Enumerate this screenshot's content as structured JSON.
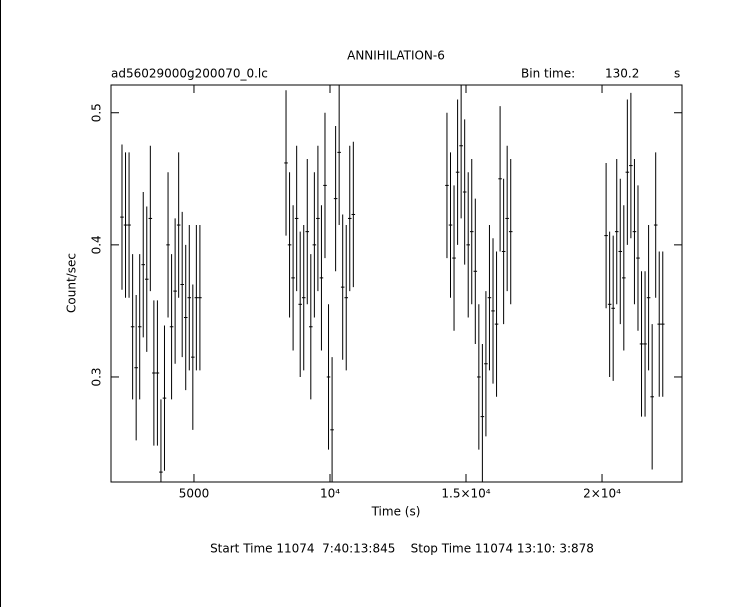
{
  "chart_data": {
    "type": "errorbar",
    "title": "ANNIHILATION-6",
    "file": "ad56029000g200070_0.lc",
    "bin_time_label": "Bin time:",
    "bin_time": "130.2",
    "bin_unit": "s",
    "xlabel": "Time (s)",
    "ylabel": "Count/sec",
    "footer": "Start Time 11074  7:40:13:845    Stop Time 11074 13:10: 3:878",
    "x": [
      2354,
      2484,
      2614,
      2745,
      2875,
      3005,
      3135,
      3265,
      3396,
      3526,
      3656,
      3786,
      3916,
      4047,
      4177,
      4307,
      4437,
      4567,
      4697,
      4828,
      4958,
      5088,
      5218,
      8384,
      8514,
      8644,
      8775,
      8905,
      9035,
      9165,
      9295,
      9426,
      9556,
      9686,
      9816,
      9946,
      10077,
      10207,
      10337,
      10467,
      10597,
      10727,
      10858,
      14300,
      14430,
      14560,
      14691,
      14821,
      14951,
      15081,
      15211,
      15342,
      15472,
      15602,
      15732,
      15862,
      15993,
      16123,
      16253,
      16383,
      16513,
      16644,
      20150,
      20280,
      20410,
      20541,
      20671,
      20801,
      20931,
      21061,
      21192,
      21322,
      21452,
      21582,
      21712,
      21843,
      21973,
      22103,
      22233
    ],
    "values": [
      0.421,
      0.415,
      0.415,
      0.338,
      0.307,
      0.338,
      0.385,
      0.374,
      0.42,
      0.303,
      0.303,
      0.228,
      0.284,
      0.4,
      0.338,
      0.365,
      0.415,
      0.37,
      0.345,
      0.36,
      0.315,
      0.36,
      0.36,
      0.462,
      0.4,
      0.375,
      0.42,
      0.355,
      0.36,
      0.41,
      0.338,
      0.4,
      0.42,
      0.375,
      0.445,
      0.3,
      0.26,
      0.435,
      0.47,
      0.368,
      0.36,
      0.42,
      0.423,
      0.445,
      0.415,
      0.39,
      0.455,
      0.475,
      0.44,
      0.4,
      0.41,
      0.38,
      0.3,
      0.27,
      0.31,
      0.36,
      0.35,
      0.34,
      0.45,
      0.395,
      0.42,
      0.41,
      0.407,
      0.355,
      0.352,
      0.41,
      0.395,
      0.375,
      0.455,
      0.46,
      0.41,
      0.39,
      0.325,
      0.325,
      0.36,
      0.285,
      0.415,
      0.34,
      0.34
    ],
    "yerr": 0.055,
    "xerr": 65.1,
    "xlim": [
      1950,
      22940
    ],
    "ylim": [
      0.2205,
      0.521
    ],
    "xticks": [
      5000,
      {
        "value": 10000,
        "label": "10⁴"
      },
      {
        "value": 15000,
        "label": "1.5×10⁴"
      },
      {
        "value": 20000,
        "label": "2×10⁴"
      }
    ],
    "yticks": [
      0.3,
      0.4,
      0.5
    ],
    "color": "#000000"
  }
}
